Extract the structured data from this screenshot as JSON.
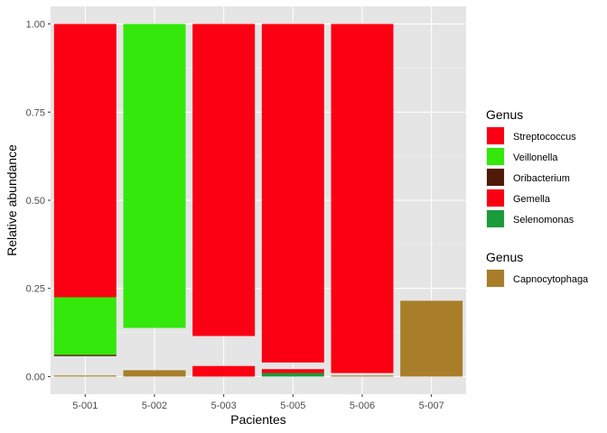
{
  "chart_data": {
    "type": "bar",
    "stacked": true,
    "xlabel": "Pacientes",
    "ylabel": "Relative abundance",
    "ylim": [
      0,
      1.05
    ],
    "y_ticks": [
      "0.00",
      "0.25",
      "0.50",
      "0.75",
      "1.00"
    ],
    "categories": [
      "5-001",
      "5-002",
      "5-003",
      "5-005",
      "5-006",
      "5-007"
    ],
    "grid": true,
    "legend_position": "right",
    "background": "#E5E5E5",
    "bars": [
      {
        "category": "5-001",
        "segments": [
          {
            "genus": "Capnocytophaga",
            "bottom": 0.0,
            "top": 0.003
          },
          {
            "genus": "Oribacterium",
            "bottom": 0.058,
            "top": 0.062
          },
          {
            "genus": "Veillonella",
            "bottom": 0.062,
            "top": 0.225
          },
          {
            "genus": "Streptococcus",
            "bottom": 0.225,
            "top": 1.0
          }
        ]
      },
      {
        "category": "5-002",
        "segments": [
          {
            "genus": "Capnocytophaga",
            "bottom": 0.0,
            "top": 0.018
          },
          {
            "genus": "Veillonella",
            "bottom": 0.138,
            "top": 1.0
          }
        ]
      },
      {
        "category": "5-003",
        "segments": [
          {
            "genus": "Gemella",
            "bottom": 0.0,
            "top": 0.03
          },
          {
            "genus": "Streptococcus",
            "bottom": 0.115,
            "top": 1.0
          }
        ]
      },
      {
        "category": "5-005",
        "segments": [
          {
            "genus": "Selenomonas",
            "bottom": 0.0,
            "top": 0.01
          },
          {
            "genus": "Gemella",
            "bottom": 0.01,
            "top": 0.021
          },
          {
            "genus": "Streptococcus",
            "bottom": 0.04,
            "top": 1.0
          }
        ]
      },
      {
        "category": "5-006",
        "segments": [
          {
            "genus": "Capnocytophaga",
            "bottom": 0.0,
            "top": 0.003
          },
          {
            "genus": "Streptococcus",
            "bottom": 0.01,
            "top": 1.0
          }
        ]
      },
      {
        "category": "5-007",
        "segments": [
          {
            "genus": "Capnocytophaga",
            "bottom": 0.0,
            "top": 0.215
          }
        ]
      }
    ],
    "legends": [
      {
        "title": "Genus",
        "entries": [
          {
            "name": "Streptococcus",
            "color": "#FB0012"
          },
          {
            "name": "Veillonella",
            "color": "#33E80A"
          },
          {
            "name": "Oribacterium",
            "color": "#4F1A08"
          },
          {
            "name": "Gemella",
            "color": "#FB0012"
          },
          {
            "name": "Selenomonas",
            "color": "#1B9B3A"
          }
        ]
      },
      {
        "title": "Genus",
        "entries": [
          {
            "name": "Capnocytophaga",
            "color": "#A87E2A"
          }
        ]
      }
    ]
  }
}
